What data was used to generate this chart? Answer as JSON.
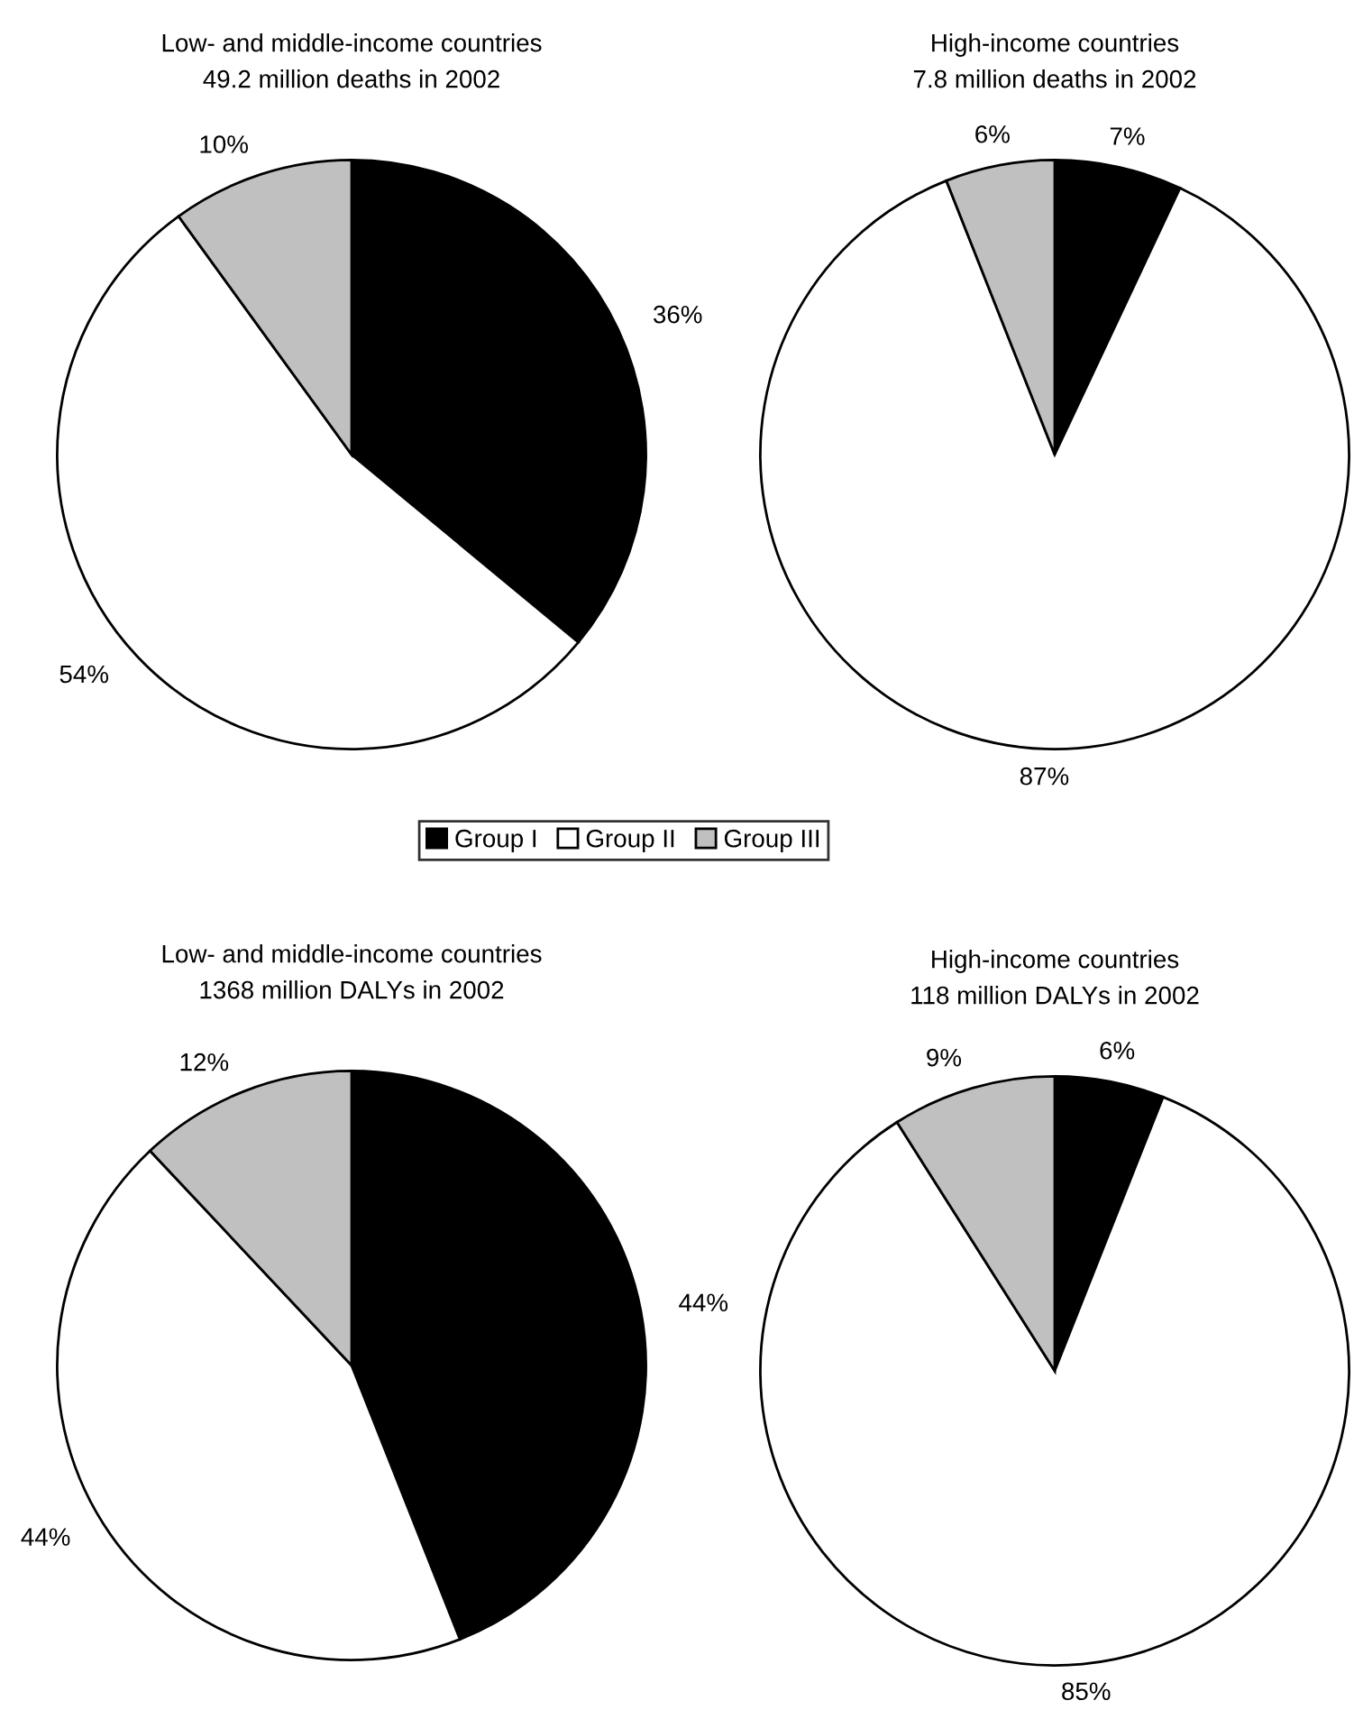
{
  "chart_data": [
    {
      "type": "pie",
      "title": "Low- and middle-income countries",
      "subtitle": "49.2 million deaths in 2002",
      "categories": [
        "Group I",
        "Group II",
        "Group III"
      ],
      "values": [
        36,
        54,
        10
      ],
      "colors": [
        "#000000",
        "#ffffff",
        "#c0c0c0"
      ],
      "value_labels": [
        "36%",
        "54%",
        "10%"
      ],
      "legend": "bottom"
    },
    {
      "type": "pie",
      "title": "High-income countries",
      "subtitle": "7.8 million deaths in 2002",
      "categories": [
        null,
        null,
        null
      ],
      "values": [
        7,
        87,
        6
      ],
      "colors": [
        "#000000",
        "#ffffff",
        "#c0c0c0"
      ],
      "value_labels": [
        "7%",
        "87%",
        "6%"
      ]
    },
    {
      "type": "pie",
      "title": "Low- and middle-income countries",
      "subtitle": "1368 million DALYs in 2002",
      "categories": [
        null,
        null,
        null
      ],
      "values": [
        44,
        44,
        12
      ],
      "colors": [
        "#000000",
        "#ffffff",
        "#c0c0c0"
      ],
      "value_labels": [
        "44%",
        "44%",
        "12%"
      ]
    },
    {
      "type": "pie",
      "title": "High-income countries",
      "subtitle": "118 million DALYs in 2002",
      "categories": [
        null,
        null,
        null
      ],
      "values": [
        6,
        85,
        9
      ],
      "colors": [
        "#000000",
        "#ffffff",
        "#c0c0c0"
      ],
      "value_labels": [
        "6%",
        "85%",
        "9%"
      ]
    }
  ]
}
